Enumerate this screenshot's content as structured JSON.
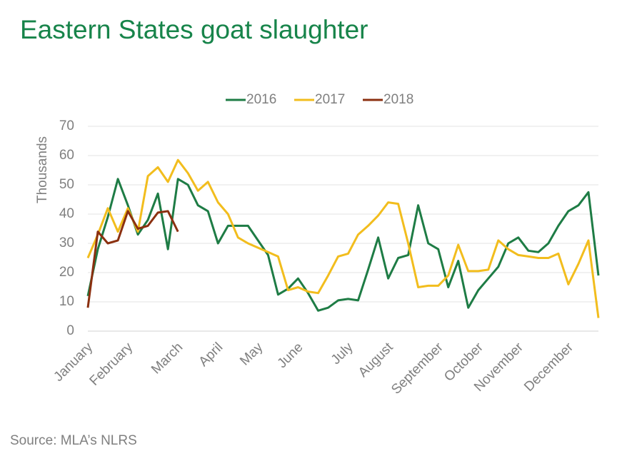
{
  "chart_data": {
    "type": "line",
    "title": "Eastern States goat slaughter",
    "y_label": "Thousands",
    "source": "Source: MLA’s NLRS",
    "categories": [
      "January",
      null,
      null,
      null,
      "February",
      null,
      null,
      null,
      null,
      "March",
      null,
      null,
      null,
      "April",
      null,
      null,
      null,
      "May",
      null,
      null,
      null,
      "June",
      null,
      null,
      null,
      null,
      "July",
      null,
      null,
      null,
      "August",
      null,
      null,
      null,
      null,
      "September",
      null,
      null,
      null,
      "October",
      null,
      null,
      null,
      "November",
      null,
      null,
      null,
      null,
      "December",
      null,
      null,
      null
    ],
    "series": [
      {
        "name": "2016",
        "color": "#1e7c45",
        "values": [
          12,
          28,
          39,
          52,
          43,
          33,
          38,
          47,
          28,
          52,
          50,
          43,
          41,
          30,
          36,
          36,
          36,
          31,
          26,
          12.5,
          14.5,
          18,
          13,
          7,
          8,
          10.5,
          11,
          10.5,
          21,
          32,
          18,
          25,
          26,
          43,
          30,
          28,
          15,
          24,
          8,
          14,
          18,
          22,
          30,
          32,
          27.5,
          27,
          30,
          36,
          41,
          43,
          47.5,
          19
        ]
      },
      {
        "name": "2017",
        "color": "#f2bd1d",
        "values": [
          25,
          33,
          42,
          34,
          42,
          34,
          53,
          56,
          51,
          58.5,
          54,
          48,
          51,
          44,
          40,
          32,
          30,
          28.5,
          27,
          25.5,
          14,
          15,
          13.5,
          13,
          19,
          25.5,
          26.5,
          33,
          36,
          39.5,
          44,
          43.5,
          30,
          15,
          15.5,
          15.5,
          19,
          29.5,
          20.5,
          20.5,
          21,
          31,
          28,
          26,
          25.5,
          25,
          25,
          26.5,
          16,
          23,
          31,
          4.5
        ]
      },
      {
        "name": "2018",
        "color": "#8b3010",
        "values": [
          8,
          34,
          30,
          31,
          41,
          35,
          36,
          40.5,
          41,
          34,
          null,
          null,
          null,
          null,
          null,
          null,
          null,
          null,
          null,
          null,
          null,
          null,
          null,
          null,
          null,
          null,
          null,
          null,
          null,
          null,
          null,
          null,
          null,
          null,
          null,
          null,
          null,
          null,
          null,
          null,
          null,
          null,
          null,
          null,
          null,
          null,
          null,
          null,
          null,
          null,
          null,
          null
        ]
      }
    ],
    "ylim": [
      0,
      70
    ],
    "yticks": [
      0,
      10,
      20,
      30,
      40,
      50,
      60,
      70
    ],
    "grid": true,
    "legend": "top"
  }
}
